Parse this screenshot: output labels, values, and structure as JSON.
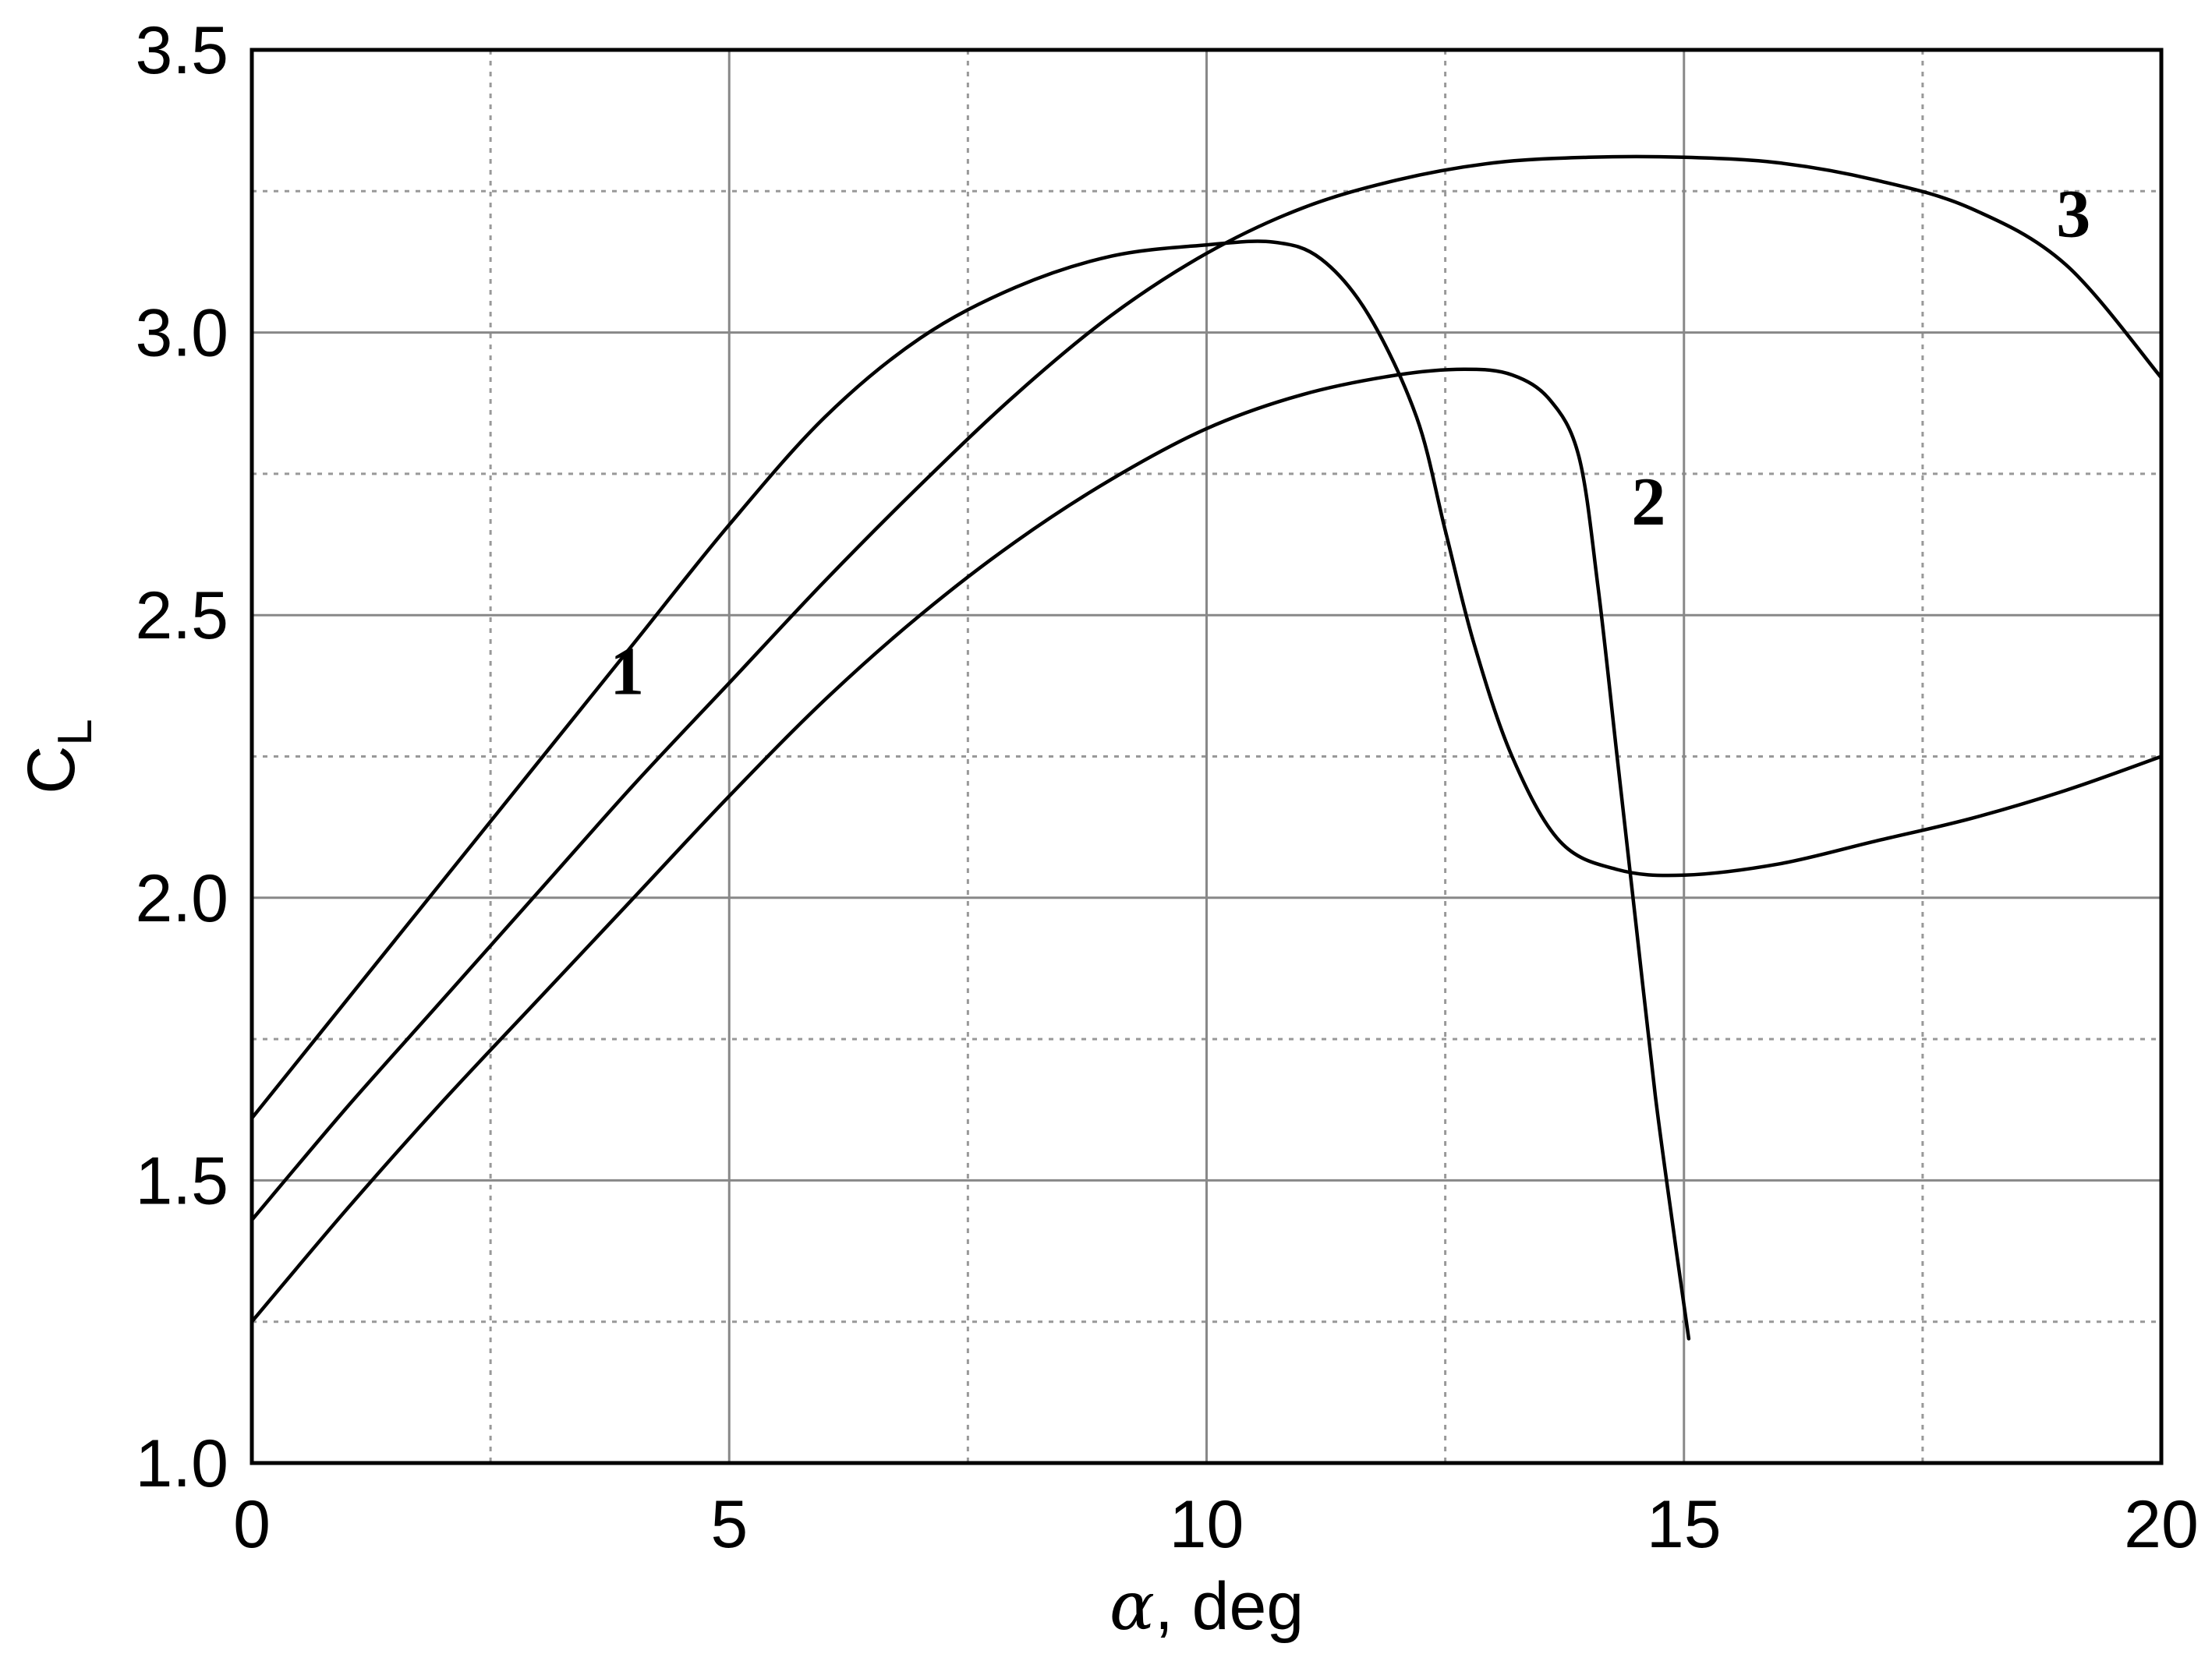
{
  "chart_data": {
    "type": "line",
    "xlabel_symbol": "α",
    "xlabel_rest": ", deg",
    "ylabel_main": "C",
    "ylabel_sub": "L",
    "xlim": [
      0,
      20
    ],
    "ylim": [
      1.0,
      3.5
    ],
    "x_ticks": [
      0,
      5,
      10,
      15,
      20
    ],
    "x_tick_labels": [
      "0",
      "5",
      "10",
      "15",
      "20"
    ],
    "y_ticks": [
      1.0,
      1.5,
      2.0,
      2.5,
      3.0,
      3.5
    ],
    "y_tick_labels": [
      "1.0",
      "1.5",
      "2.0",
      "2.5",
      "3.0",
      "3.5"
    ],
    "x_minor_ticks": [
      2.5,
      7.5,
      12.5,
      17.5
    ],
    "y_minor_ticks": [
      1.25,
      1.75,
      2.25,
      2.75,
      3.25
    ],
    "grid": true,
    "series": [
      {
        "label": "1",
        "label_at": [
          3.75,
          2.36
        ],
        "points": [
          [
            0,
            1.61
          ],
          [
            1,
            1.82
          ],
          [
            2,
            2.03
          ],
          [
            3,
            2.24
          ],
          [
            4,
            2.45
          ],
          [
            5,
            2.66
          ],
          [
            6,
            2.85
          ],
          [
            7,
            2.99
          ],
          [
            8,
            3.08
          ],
          [
            9,
            3.135
          ],
          [
            10,
            3.155
          ],
          [
            10.7,
            3.16
          ],
          [
            11.2,
            3.13
          ],
          [
            11.7,
            3.03
          ],
          [
            12.2,
            2.85
          ],
          [
            12.5,
            2.65
          ],
          [
            12.8,
            2.45
          ],
          [
            13.2,
            2.25
          ],
          [
            13.7,
            2.1
          ],
          [
            14.3,
            2.05
          ],
          [
            15,
            2.04
          ],
          [
            16,
            2.06
          ],
          [
            17,
            2.1
          ],
          [
            18,
            2.14
          ],
          [
            19,
            2.19
          ],
          [
            20,
            2.25
          ]
        ]
      },
      {
        "label": "2",
        "label_at": [
          14.45,
          2.66
        ],
        "points": [
          [
            0,
            1.25
          ],
          [
            1,
            1.45
          ],
          [
            2,
            1.64
          ],
          [
            3,
            1.82
          ],
          [
            4,
            2.0
          ],
          [
            5,
            2.18
          ],
          [
            6,
            2.35
          ],
          [
            7,
            2.5
          ],
          [
            8,
            2.63
          ],
          [
            9,
            2.74
          ],
          [
            10,
            2.83
          ],
          [
            11,
            2.89
          ],
          [
            12,
            2.925
          ],
          [
            12.7,
            2.935
          ],
          [
            13.2,
            2.925
          ],
          [
            13.6,
            2.88
          ],
          [
            13.9,
            2.78
          ],
          [
            14.1,
            2.55
          ],
          [
            14.3,
            2.25
          ],
          [
            14.5,
            1.95
          ],
          [
            14.7,
            1.65
          ],
          [
            14.9,
            1.4
          ],
          [
            15.05,
            1.22
          ]
        ]
      },
      {
        "label": "3",
        "label_at": [
          18.9,
          3.17
        ],
        "points": [
          [
            0,
            1.43
          ],
          [
            1,
            1.63
          ],
          [
            2,
            1.82
          ],
          [
            3,
            2.01
          ],
          [
            4,
            2.2
          ],
          [
            5,
            2.38
          ],
          [
            6,
            2.56
          ],
          [
            7,
            2.73
          ],
          [
            8,
            2.89
          ],
          [
            9,
            3.03
          ],
          [
            10,
            3.14
          ],
          [
            11,
            3.22
          ],
          [
            12,
            3.27
          ],
          [
            13,
            3.3
          ],
          [
            14,
            3.31
          ],
          [
            15,
            3.31
          ],
          [
            16,
            3.3
          ],
          [
            17,
            3.27
          ],
          [
            18,
            3.22
          ],
          [
            19,
            3.12
          ],
          [
            20,
            2.92
          ]
        ]
      }
    ]
  }
}
